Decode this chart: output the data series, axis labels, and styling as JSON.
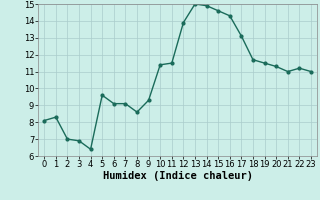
{
  "x": [
    0,
    1,
    2,
    3,
    4,
    5,
    6,
    7,
    8,
    9,
    10,
    11,
    12,
    13,
    14,
    15,
    16,
    17,
    18,
    19,
    20,
    21,
    22,
    23
  ],
  "y": [
    8.1,
    8.3,
    7.0,
    6.9,
    6.4,
    9.6,
    9.1,
    9.1,
    8.6,
    9.3,
    11.4,
    11.5,
    13.9,
    15.0,
    14.9,
    14.6,
    14.3,
    13.1,
    11.7,
    11.5,
    11.3,
    11.0,
    11.2,
    11.0
  ],
  "line_color": "#1a6b5a",
  "marker": "o",
  "marker_size": 2.0,
  "line_width": 1.0,
  "bg_color": "#cceee8",
  "grid_color": "#aacccc",
  "xlabel": "Humidex (Indice chaleur)",
  "ylim": [
    6,
    15
  ],
  "xlim": [
    -0.5,
    23.5
  ],
  "yticks": [
    6,
    7,
    8,
    9,
    10,
    11,
    12,
    13,
    14,
    15
  ],
  "xticks": [
    0,
    1,
    2,
    3,
    4,
    5,
    6,
    7,
    8,
    9,
    10,
    11,
    12,
    13,
    14,
    15,
    16,
    17,
    18,
    19,
    20,
    21,
    22,
    23
  ],
  "tick_fontsize": 6,
  "xlabel_fontsize": 7.5
}
